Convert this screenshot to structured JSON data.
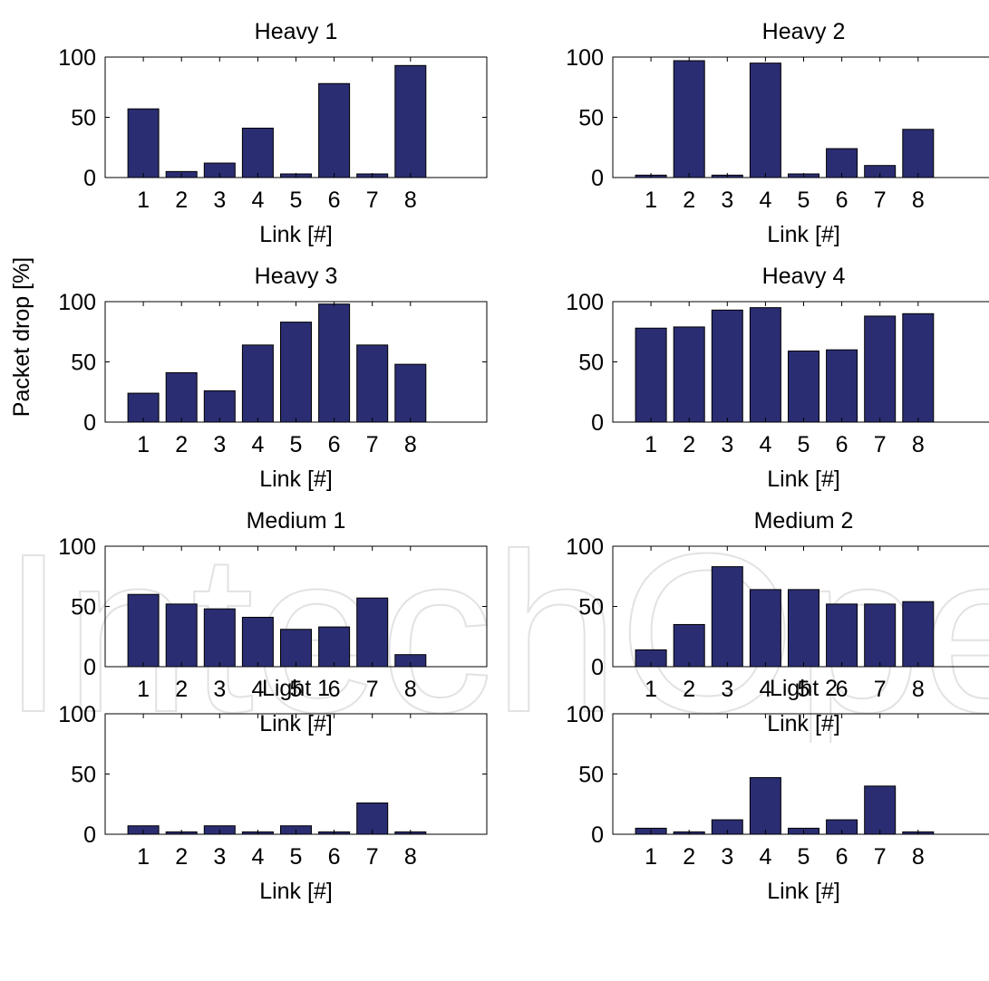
{
  "figure": {
    "shared_ylabel": "Packet drop [%]",
    "watermark_text": "IntechOpen"
  },
  "colors": {
    "bar_fill": "#2b2d72",
    "bar_edge": "#000000",
    "axes": "#000000",
    "background": "#ffffff"
  },
  "chart_data": [
    {
      "type": "bar",
      "title": "Heavy 1",
      "xlabel": "Link [#]",
      "ylabel": "",
      "categories": [
        "1",
        "2",
        "3",
        "4",
        "5",
        "6",
        "7",
        "8"
      ],
      "values": [
        57,
        5,
        12,
        41,
        3,
        78,
        3,
        93
      ],
      "xlim": [
        0,
        10
      ],
      "ylim": [
        0,
        100
      ],
      "yticks": [
        "0",
        "50",
        "100"
      ],
      "grid": false
    },
    {
      "type": "bar",
      "title": "Heavy 2",
      "xlabel": "Link [#]",
      "ylabel": "",
      "categories": [
        "1",
        "2",
        "3",
        "4",
        "5",
        "6",
        "7",
        "8"
      ],
      "values": [
        2,
        97,
        2,
        95,
        3,
        24,
        10,
        40
      ],
      "xlim": [
        0,
        10
      ],
      "ylim": [
        0,
        100
      ],
      "yticks": [
        "0",
        "50",
        "100"
      ],
      "grid": false
    },
    {
      "type": "bar",
      "title": "Heavy 3",
      "xlabel": "Link [#]",
      "ylabel": "",
      "categories": [
        "1",
        "2",
        "3",
        "4",
        "5",
        "6",
        "7",
        "8"
      ],
      "values": [
        24,
        41,
        26,
        64,
        83,
        98,
        64,
        48
      ],
      "xlim": [
        0,
        10
      ],
      "ylim": [
        0,
        100
      ],
      "yticks": [
        "0",
        "50",
        "100"
      ],
      "grid": false
    },
    {
      "type": "bar",
      "title": "Heavy 4",
      "xlabel": "Link [#]",
      "ylabel": "",
      "categories": [
        "1",
        "2",
        "3",
        "4",
        "5",
        "6",
        "7",
        "8"
      ],
      "values": [
        78,
        79,
        93,
        95,
        59,
        60,
        88,
        90
      ],
      "xlim": [
        0,
        10
      ],
      "ylim": [
        0,
        100
      ],
      "yticks": [
        "0",
        "50",
        "100"
      ],
      "grid": false
    },
    {
      "type": "bar",
      "title": "Medium 1",
      "xlabel": "Link [#]",
      "ylabel": "",
      "categories": [
        "1",
        "2",
        "3",
        "4",
        "5",
        "6",
        "7",
        "8"
      ],
      "values": [
        60,
        52,
        48,
        41,
        31,
        33,
        57,
        10
      ],
      "xlim": [
        0,
        10
      ],
      "ylim": [
        0,
        100
      ],
      "yticks": [
        "0",
        "50",
        "100"
      ],
      "grid": false
    },
    {
      "type": "bar",
      "title": "Medium 2",
      "xlabel": "Link [#]",
      "ylabel": "",
      "categories": [
        "1",
        "2",
        "3",
        "4",
        "5",
        "6",
        "7",
        "8"
      ],
      "values": [
        14,
        35,
        83,
        64,
        64,
        52,
        52,
        54
      ],
      "xlim": [
        0,
        10
      ],
      "ylim": [
        0,
        100
      ],
      "yticks": [
        "0",
        "50",
        "100"
      ],
      "grid": false
    },
    {
      "type": "bar",
      "title": "Light 1",
      "xlabel": "Link [#]",
      "ylabel": "",
      "categories": [
        "1",
        "2",
        "3",
        "4",
        "5",
        "6",
        "7",
        "8"
      ],
      "values": [
        7,
        2,
        7,
        2,
        7,
        2,
        26,
        2
      ],
      "xlim": [
        0,
        10
      ],
      "ylim": [
        0,
        100
      ],
      "yticks": [
        "0",
        "50",
        "100"
      ],
      "grid": false
    },
    {
      "type": "bar",
      "title": "Light 2",
      "xlabel": "Link [#]",
      "ylabel": "",
      "categories": [
        "1",
        "2",
        "3",
        "4",
        "5",
        "6",
        "7",
        "8"
      ],
      "values": [
        5,
        2,
        12,
        47,
        5,
        12,
        40,
        2
      ],
      "xlim": [
        0,
        10
      ],
      "ylim": [
        0,
        100
      ],
      "yticks": [
        "0",
        "50",
        "100"
      ],
      "grid": false
    }
  ]
}
